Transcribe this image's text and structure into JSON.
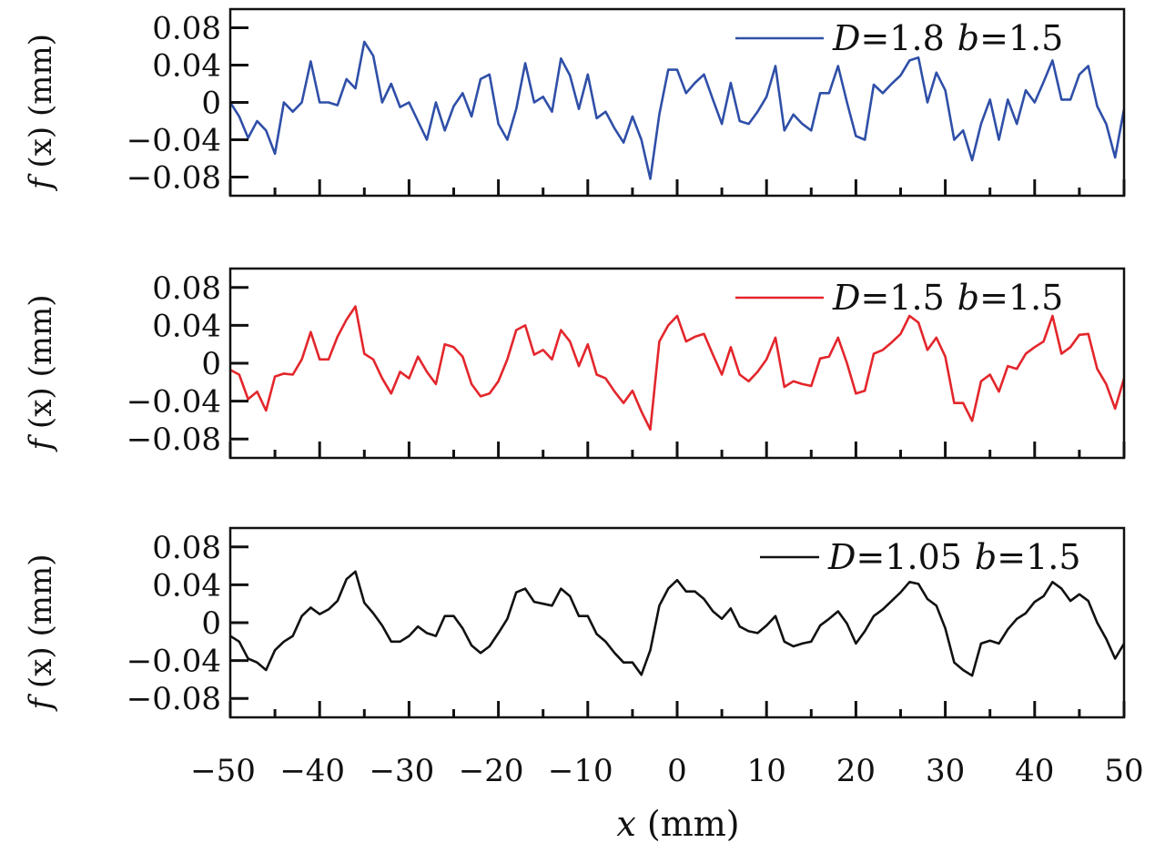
{
  "chart_data": [
    {
      "type": "line",
      "ylabel": "f (x)  (mm)",
      "ylabel_func": "f",
      "ylabel_rest": " (x)  (mm)",
      "ylim": [
        -0.1,
        0.1
      ],
      "yticks": [
        0.08,
        0.04,
        0,
        -0.04,
        -0.08
      ],
      "ytick_labels": [
        "0.08",
        "0.04",
        "0",
        "−0.04",
        "−0.08"
      ],
      "legend": {
        "D_label": "D",
        "D_value": "=1.8",
        "b_label": "b",
        "b_value": "=1.5",
        "placement": "top-right"
      },
      "series": [
        {
          "name": "D=1.8 b=1.5",
          "color": "#2f4fa8",
          "values": [
            0,
            -0.015,
            -0.038,
            -0.02,
            -0.03,
            -0.055,
            0,
            -0.01,
            0,
            0.044,
            0,
            0,
            -0.003,
            0.025,
            0.015,
            0.065,
            0.05,
            0,
            0.02,
            -0.005,
            0,
            -0.02,
            -0.04,
            0,
            -0.03,
            -0.004,
            0.01,
            -0.015,
            0.025,
            0.03,
            -0.023,
            -0.04,
            -0.007,
            0.042,
            0,
            0.006,
            -0.01,
            0.047,
            0.029,
            -0.007,
            0.03,
            -0.017,
            -0.01,
            -0.028,
            -0.043,
            -0.015,
            -0.04,
            -0.082,
            -0.013,
            0.035,
            0.035,
            0.01,
            0.021,
            0.03,
            0.003,
            -0.023,
            0.021,
            -0.02,
            -0.023,
            -0.01,
            0.006,
            0.039,
            -0.03,
            -0.013,
            -0.023,
            -0.03,
            0.01,
            0.01,
            0.039,
            0,
            -0.036,
            -0.04,
            0.019,
            0.01,
            0.02,
            0.029,
            0.045,
            0.048,
            0,
            0.032,
            0.013,
            -0.04,
            -0.03,
            -0.062,
            -0.023,
            0.003,
            -0.04,
            0.003,
            -0.023,
            0.013,
            0,
            0.022,
            0.045,
            0.003,
            0.003,
            0.03,
            0.039,
            -0.004,
            -0.023,
            -0.059,
            -0.007
          ]
        }
      ]
    },
    {
      "type": "line",
      "ylabel": "f (x)  (mm)",
      "ylabel_func": "f",
      "ylabel_rest": " (x)  (mm)",
      "ylim": [
        -0.1,
        0.1
      ],
      "yticks": [
        0.08,
        0.04,
        0,
        -0.04,
        -0.08
      ],
      "ytick_labels": [
        "0.08",
        "0.04",
        "0",
        "−0.04",
        "−0.08"
      ],
      "legend": {
        "D_label": "D",
        "D_value": "=1.5",
        "b_label": "b",
        "b_value": "=1.5",
        "placement": "top-right"
      },
      "series": [
        {
          "name": "D=1.5 b=1.5",
          "color": "#e3262c",
          "values": [
            -0.007,
            -0.012,
            -0.038,
            -0.03,
            -0.05,
            -0.014,
            -0.011,
            -0.012,
            0.004,
            0.033,
            0.004,
            0.004,
            0.028,
            0.046,
            0.06,
            0.01,
            0.004,
            -0.016,
            -0.032,
            -0.009,
            -0.016,
            0.007,
            -0.009,
            -0.022,
            0.02,
            0.017,
            0.007,
            -0.022,
            -0.035,
            -0.032,
            -0.019,
            0.004,
            0.035,
            0.04,
            0.009,
            0.014,
            0.004,
            0.035,
            0.023,
            -0.003,
            0.02,
            -0.012,
            -0.016,
            -0.03,
            -0.042,
            -0.029,
            -0.051,
            -0.07,
            0.023,
            0.04,
            0.05,
            0.023,
            0.028,
            0.031,
            0.009,
            -0.012,
            0.017,
            -0.012,
            -0.019,
            -0.009,
            0.004,
            0.027,
            -0.025,
            -0.019,
            -0.022,
            -0.024,
            0.005,
            0.007,
            0.027,
            0,
            -0.032,
            -0.029,
            0.01,
            0.014,
            0.022,
            0.031,
            0.05,
            0.043,
            0.014,
            0.027,
            0.007,
            -0.042,
            -0.042,
            -0.061,
            -0.019,
            -0.012,
            -0.03,
            -0.003,
            -0.006,
            0.01,
            0.017,
            0.023,
            0.05,
            0.01,
            0.017,
            0.03,
            0.031,
            -0.006,
            -0.022,
            -0.048,
            -0.016
          ]
        }
      ]
    },
    {
      "type": "line",
      "ylabel": "f (x)  (mm)",
      "ylabel_func": "f",
      "ylabel_rest": " (x)  (mm)",
      "ylim": [
        -0.1,
        0.1
      ],
      "yticks": [
        0.08,
        0.04,
        0,
        -0.04,
        -0.08
      ],
      "ytick_labels": [
        "0.08",
        "0.04",
        "0",
        "−0.04",
        "−0.08"
      ],
      "legend": {
        "D_label": "D",
        "D_value": "=1.05",
        "b_label": "b",
        "b_value": "=1.5",
        "placement": "top-right"
      },
      "series": [
        {
          "name": "D=1.05 b=1.5",
          "color": "#111111",
          "values": [
            -0.014,
            -0.02,
            -0.038,
            -0.042,
            -0.05,
            -0.029,
            -0.02,
            -0.014,
            0.007,
            0.016,
            0.009,
            0.014,
            0.023,
            0.046,
            0.054,
            0.021,
            0.01,
            -0.003,
            -0.02,
            -0.02,
            -0.014,
            -0.004,
            -0.011,
            -0.014,
            0.007,
            0.007,
            -0.006,
            -0.024,
            -0.032,
            -0.025,
            -0.011,
            0.004,
            0.032,
            0.036,
            0.022,
            0.02,
            0.018,
            0.036,
            0.028,
            0.007,
            0.007,
            -0.012,
            -0.02,
            -0.032,
            -0.042,
            -0.042,
            -0.055,
            -0.029,
            0.018,
            0.036,
            0.045,
            0.033,
            0.033,
            0.025,
            0.012,
            0.004,
            0.015,
            -0.004,
            -0.009,
            -0.011,
            -0.003,
            0.007,
            -0.02,
            -0.025,
            -0.022,
            -0.02,
            -0.003,
            0.004,
            0.012,
            -0.001,
            -0.022,
            -0.009,
            0.007,
            0.014,
            0.023,
            0.032,
            0.043,
            0.041,
            0.025,
            0.018,
            -0.006,
            -0.042,
            -0.05,
            -0.056,
            -0.022,
            -0.019,
            -0.022,
            -0.007,
            0.004,
            0.01,
            0.022,
            0.028,
            0.043,
            0.036,
            0.023,
            0.03,
            0.023,
            0,
            -0.017,
            -0.038,
            -0.022
          ]
        }
      ]
    }
  ],
  "x_axis": {
    "range": [
      -50,
      50
    ],
    "x_start": -50,
    "x_step": 1,
    "ticks": [
      -50,
      -40,
      -30,
      -20,
      -10,
      0,
      10,
      20,
      30,
      40,
      50
    ],
    "tick_labels": [
      "−50",
      "−40",
      "−30",
      "−20",
      "−10",
      "0",
      "10",
      "20",
      "30",
      "40",
      "50"
    ],
    "minor_ticks": [
      -45,
      -35,
      -25,
      -15,
      -5,
      5,
      15,
      25,
      35,
      45
    ],
    "xlabel_var": "x",
    "xlabel_unit": " (mm)"
  }
}
